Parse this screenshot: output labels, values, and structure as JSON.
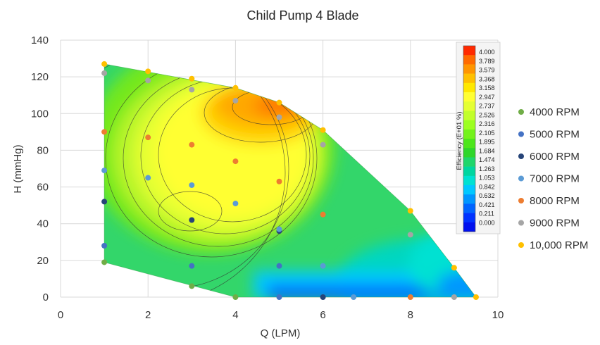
{
  "chart_data": {
    "type": "scatter",
    "title": "Child Pump 4 Blade",
    "xlabel": "Q (LPM)",
    "ylabel": "H (mmHg)",
    "xlim": [
      0,
      10
    ],
    "ylim": [
      0,
      140
    ],
    "xticks": [
      "0",
      "2",
      "4",
      "6",
      "8",
      "10"
    ],
    "yticks": [
      "0",
      "20",
      "40",
      "60",
      "80",
      "100",
      "120",
      "140"
    ],
    "grid": true,
    "legend_position": "right",
    "series": [
      {
        "name": "4000 RPM",
        "color": "#70ad47",
        "points": [
          [
            1,
            19
          ],
          [
            3,
            6
          ],
          [
            4,
            0
          ]
        ]
      },
      {
        "name": "5000 RPM",
        "color": "#4472c4",
        "points": [
          [
            1,
            28
          ],
          [
            3,
            17
          ],
          [
            5,
            17
          ],
          [
            5,
            0
          ]
        ]
      },
      {
        "name": "6000 RPM",
        "color": "#264478",
        "points": [
          [
            1,
            52
          ],
          [
            3,
            42
          ],
          [
            5,
            36
          ],
          [
            6,
            0
          ]
        ]
      },
      {
        "name": "7000 RPM",
        "color": "#5b9bd5",
        "points": [
          [
            1,
            69
          ],
          [
            2,
            65
          ],
          [
            3,
            61
          ],
          [
            4,
            51
          ],
          [
            5,
            37
          ],
          [
            6,
            17
          ],
          [
            6.7,
            0
          ]
        ]
      },
      {
        "name": "8000 RPM",
        "color": "#ed7d31",
        "points": [
          [
            1,
            90
          ],
          [
            2,
            87
          ],
          [
            3,
            83
          ],
          [
            4,
            74
          ],
          [
            5,
            63
          ],
          [
            6,
            45
          ],
          [
            8,
            0
          ]
        ]
      },
      {
        "name": "9000 RPM",
        "color": "#a5a5a5",
        "points": [
          [
            1,
            122
          ],
          [
            2,
            118
          ],
          [
            3,
            113
          ],
          [
            4,
            107
          ],
          [
            5,
            98
          ],
          [
            6,
            83
          ],
          [
            8,
            34
          ],
          [
            9,
            0
          ]
        ]
      },
      {
        "name": "10,000 RPM",
        "color": "#ffc000",
        "points": [
          [
            1,
            127
          ],
          [
            2,
            123
          ],
          [
            3,
            119
          ],
          [
            4,
            114
          ],
          [
            5,
            106
          ],
          [
            6,
            91
          ],
          [
            8,
            47
          ],
          [
            9,
            16
          ],
          [
            9.5,
            0
          ]
        ]
      }
    ],
    "contour_region": [
      [
        1,
        127
      ],
      [
        4,
        114
      ],
      [
        5,
        106
      ],
      [
        6,
        91
      ],
      [
        8,
        47
      ],
      [
        9,
        16
      ],
      [
        9.5,
        0
      ],
      [
        4,
        0
      ],
      [
        1,
        19
      ]
    ],
    "colorbar": {
      "title": "Efficiency (E+01 %)",
      "labels": [
        "4.000",
        "3.789",
        "3.579",
        "3.368",
        "3.158",
        "2.947",
        "2.737",
        "2.526",
        "2.316",
        "2.105",
        "1.895",
        "1.684",
        "1.474",
        "1.263",
        "1.053",
        "0.842",
        "0.632",
        "0.421",
        "0.211",
        "0.000"
      ],
      "colors": [
        "#ff2a00",
        "#ff6a00",
        "#ff9500",
        "#ffc000",
        "#ffe800",
        "#ffff33",
        "#e5ff33",
        "#c2ff2a",
        "#9cff1f",
        "#73f21a",
        "#4ce61a",
        "#2ed62a",
        "#1fd66b",
        "#00d6a0",
        "#00e1d2",
        "#00c8ff",
        "#0096ff",
        "#0064ff",
        "#0032ff",
        "#0010ee"
      ]
    }
  }
}
